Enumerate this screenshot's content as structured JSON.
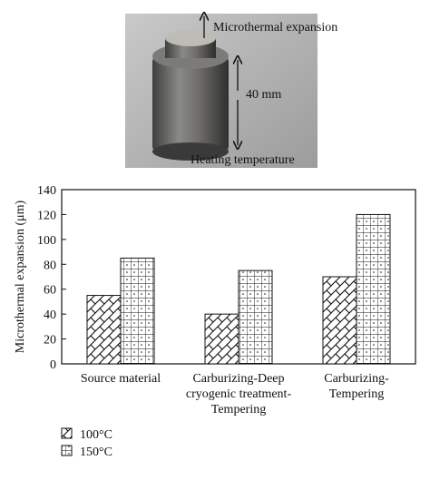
{
  "chart_data": {
    "type": "bar",
    "annotations": [
      "Microthermal expansion",
      "40 mm",
      "Heating temperature"
    ],
    "y_label": "Microthermal expansion (μm)",
    "categories": [
      "Source material",
      "Carburizing-Deep\ncryogenic treatment-\nTempering",
      "Carburizing-\nTempering"
    ],
    "series": [
      {
        "name": "100°C",
        "pattern": "crosshatch",
        "values": [
          55,
          40,
          70
        ]
      },
      {
        "name": "150°C",
        "pattern": "grid",
        "values": [
          85,
          75,
          120
        ]
      }
    ],
    "ylim": [
      0,
      140
    ],
    "yticks": [
      0,
      20,
      40,
      60,
      80,
      100,
      120,
      140
    ]
  }
}
